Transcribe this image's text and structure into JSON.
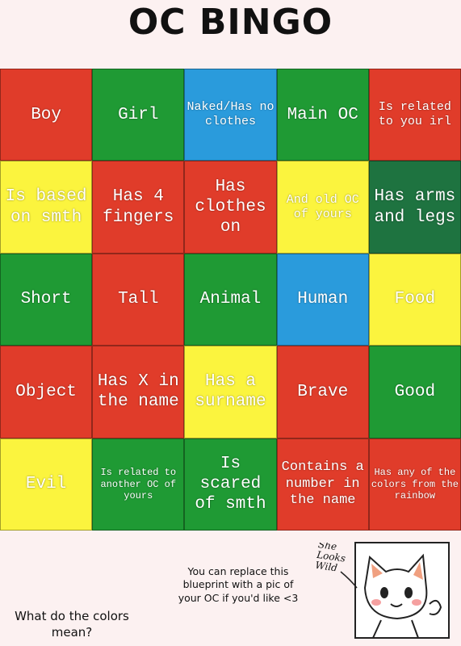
{
  "header": {
    "title": "OC BINGO"
  },
  "grid": {
    "rows": [
      [
        {
          "text": "Boy",
          "color": "#e03c2a"
        },
        {
          "text": "Girl",
          "color": "#1f9a34"
        },
        {
          "text": "Naked/Has no clothes",
          "color": "#2a9bdc"
        },
        {
          "text": "Main OC",
          "color": "#1f9a34"
        },
        {
          "text": "Is related to you irl",
          "color": "#e03c2a"
        }
      ],
      [
        {
          "text": "Is based on smth",
          "color": "#fbf43e"
        },
        {
          "text": "Has 4 fingers",
          "color": "#e03c2a"
        },
        {
          "text": "Has clothes on",
          "color": "#e03c2a"
        },
        {
          "text": "And old OC of yours",
          "color": "#fbf43e"
        },
        {
          "text": "Has arms and legs",
          "color": "#1e7340"
        }
      ],
      [
        {
          "text": "Short",
          "color": "#1f9a34"
        },
        {
          "text": "Tall",
          "color": "#e03c2a"
        },
        {
          "text": "Animal",
          "color": "#1f9a34"
        },
        {
          "text": "Human",
          "color": "#2a9bdc"
        },
        {
          "text": "Food",
          "color": "#fbf43e"
        }
      ],
      [
        {
          "text": "Object",
          "color": "#e03c2a"
        },
        {
          "text": "Has X in the name",
          "color": "#e03c2a"
        },
        {
          "text": "Has a surname",
          "color": "#fbf43e"
        },
        {
          "text": "Brave",
          "color": "#e03c2a"
        },
        {
          "text": "Good",
          "color": "#1f9a34"
        }
      ],
      [
        {
          "text": "Evil",
          "color": "#fbf43e"
        },
        {
          "text": "Is related to another OC of yours",
          "color": "#1f9a34"
        },
        {
          "text": "Is scared of smth",
          "color": "#1f9a34"
        },
        {
          "text": "Contains a number in the name",
          "color": "#e03c2a"
        },
        {
          "text": "Has any of the colors from the rainbow",
          "color": "#e03c2a"
        }
      ]
    ]
  },
  "footer": {
    "note": "You can replace this blueprint with a pic of your OC if you'd like <3",
    "question": "What do the colors mean?",
    "sketch_caption": "She Looks Wild"
  }
}
